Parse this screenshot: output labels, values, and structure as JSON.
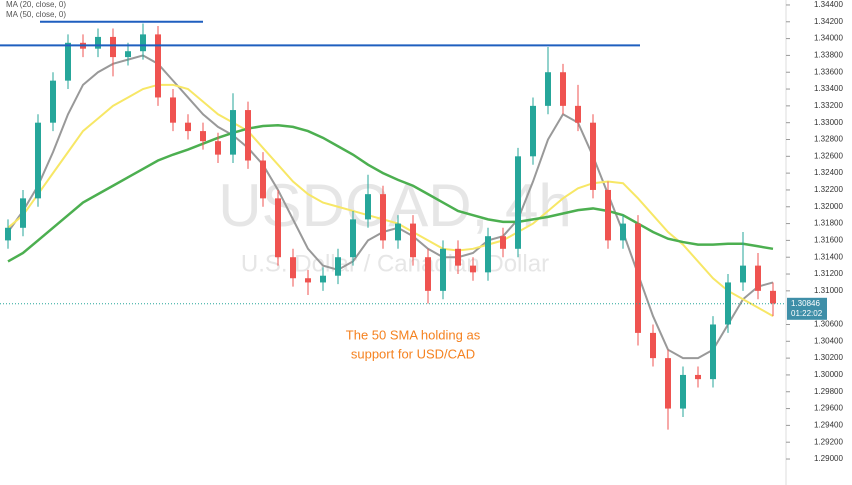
{
  "chart_data": {
    "type": "candlestick",
    "legend": [
      "MA (20, close, 0)",
      "MA (50, close, 0)"
    ],
    "watermark": "USDCAD, 4h",
    "watermark_subtitle": "U.S. Dollar / Canadian Dollar",
    "annotation": [
      "The 50 SMA holding as",
      "support for USD/CAD"
    ],
    "annotation_color": "#f58220",
    "last_price": 1.30846,
    "countdown": "01:22:02",
    "hlines": [
      {
        "value": 1.342,
        "color": "#1f5fbf"
      },
      {
        "value": 1.3392,
        "color": "#1f5fbf"
      }
    ],
    "up_color": "#26a69a",
    "down_color": "#ef5350",
    "ylim": [
      1.28691,
      1.34459
    ],
    "yticks": [
      {
        "value": 1.344,
        "label": "1.34400"
      },
      {
        "value": 1.342,
        "label": "1.34200"
      },
      {
        "value": 1.34,
        "label": "1.34000"
      },
      {
        "value": 1.338,
        "label": "1.33800"
      },
      {
        "value": 1.336,
        "label": "1.33600"
      },
      {
        "value": 1.334,
        "label": "1.33400"
      },
      {
        "value": 1.332,
        "label": "1.33200"
      },
      {
        "value": 1.33,
        "label": "1.33000"
      },
      {
        "value": 1.328,
        "label": "1.32800"
      },
      {
        "value": 1.326,
        "label": "1.32600"
      },
      {
        "value": 1.324,
        "label": "1.32400"
      },
      {
        "value": 1.322,
        "label": "1.32200"
      },
      {
        "value": 1.32,
        "label": "1.32000"
      },
      {
        "value": 1.318,
        "label": "1.31800"
      },
      {
        "value": 1.316,
        "label": "1.31600"
      },
      {
        "value": 1.314,
        "label": "1.31400"
      },
      {
        "value": 1.312,
        "label": "1.31200"
      },
      {
        "value": 1.31,
        "label": "1.31000"
      },
      {
        "value": 1.306,
        "label": "1.30600"
      },
      {
        "value": 1.304,
        "label": "1.30400"
      },
      {
        "value": 1.302,
        "label": "1.30200"
      },
      {
        "value": 1.3,
        "label": "1.30000"
      },
      {
        "value": 1.298,
        "label": "1.29800"
      },
      {
        "value": 1.296,
        "label": "1.29600"
      },
      {
        "value": 1.294,
        "label": "1.29400"
      },
      {
        "value": 1.292,
        "label": "1.29200"
      },
      {
        "value": 1.29,
        "label": "1.29000"
      }
    ],
    "open": [
      1.316,
      1.3175,
      1.321,
      1.33,
      1.335,
      1.3395,
      1.3388,
      1.3402,
      1.3378,
      1.3385,
      1.3405,
      1.333,
      1.33,
      1.329,
      1.3278,
      1.3262,
      1.3315,
      1.3255,
      1.321,
      1.314,
      1.3115,
      1.311,
      1.3118,
      1.314,
      1.3185,
      1.3215,
      1.316,
      1.318,
      1.314,
      1.31,
      1.315,
      1.313,
      1.3122,
      1.3165,
      1.315,
      1.326,
      1.332,
      1.336,
      1.332,
      1.33,
      1.322,
      1.316,
      1.318,
      1.305,
      1.302,
      1.296,
      1.3,
      1.2995,
      1.306,
      1.311,
      1.313,
      1.31
    ],
    "high": [
      1.3185,
      1.322,
      1.331,
      1.336,
      1.3405,
      1.3405,
      1.3412,
      1.3412,
      1.3395,
      1.3418,
      1.3415,
      1.334,
      1.331,
      1.33,
      1.3288,
      1.3335,
      1.3325,
      1.3265,
      1.322,
      1.315,
      1.3125,
      1.3128,
      1.315,
      1.3195,
      1.3238,
      1.3225,
      1.319,
      1.319,
      1.315,
      1.316,
      1.316,
      1.314,
      1.3175,
      1.3175,
      1.327,
      1.333,
      1.339,
      1.337,
      1.3345,
      1.331,
      1.323,
      1.319,
      1.319,
      1.306,
      1.303,
      1.301,
      1.301,
      1.307,
      1.312,
      1.317,
      1.3145,
      1.311
    ],
    "low": [
      1.315,
      1.3165,
      1.32,
      1.329,
      1.334,
      1.3378,
      1.3378,
      1.3355,
      1.3368,
      1.3375,
      1.332,
      1.329,
      1.328,
      1.3268,
      1.3252,
      1.3252,
      1.3245,
      1.32,
      1.313,
      1.3105,
      1.3095,
      1.31,
      1.3108,
      1.313,
      1.3175,
      1.315,
      1.315,
      1.313,
      1.3085,
      1.309,
      1.312,
      1.3112,
      1.3112,
      1.314,
      1.314,
      1.325,
      1.331,
      1.331,
      1.329,
      1.321,
      1.315,
      1.315,
      1.3035,
      1.301,
      1.2935,
      1.295,
      1.2985,
      1.2985,
      1.305,
      1.31,
      1.309,
      1.307
    ],
    "close": [
      1.3175,
      1.321,
      1.33,
      1.335,
      1.3395,
      1.3388,
      1.3402,
      1.3378,
      1.3385,
      1.3405,
      1.333,
      1.33,
      1.329,
      1.3278,
      1.3262,
      1.3315,
      1.3255,
      1.321,
      1.314,
      1.3115,
      1.311,
      1.3118,
      1.314,
      1.3185,
      1.3215,
      1.316,
      1.318,
      1.314,
      1.31,
      1.315,
      1.313,
      1.3122,
      1.3165,
      1.315,
      1.326,
      1.332,
      1.336,
      1.332,
      1.33,
      1.322,
      1.316,
      1.318,
      1.305,
      1.302,
      1.296,
      1.3,
      1.2995,
      1.306,
      1.311,
      1.313,
      1.31,
      1.3085
    ],
    "series": [
      {
        "name": "MA (20, close, 0)",
        "color": "#999999",
        "values": [
          1.317,
          1.3195,
          1.3225,
          1.3265,
          1.331,
          1.3345,
          1.336,
          1.337,
          1.3375,
          1.338,
          1.337,
          1.335,
          1.333,
          1.331,
          1.3295,
          1.3285,
          1.327,
          1.325,
          1.322,
          1.3185,
          1.315,
          1.313,
          1.3125,
          1.3135,
          1.316,
          1.317,
          1.3175,
          1.3165,
          1.315,
          1.314,
          1.314,
          1.3145,
          1.316,
          1.3165,
          1.3185,
          1.323,
          1.328,
          1.331,
          1.33,
          1.326,
          1.3215,
          1.317,
          1.312,
          1.307,
          1.303,
          1.302,
          1.302,
          1.303,
          1.306,
          1.309,
          1.3105,
          1.311
        ]
      },
      {
        "name": "MA (50, close, 0)",
        "color": "#f7e766",
        "values": [
          1.3175,
          1.319,
          1.3215,
          1.324,
          1.3265,
          1.329,
          1.3305,
          1.332,
          1.333,
          1.334,
          1.3345,
          1.3345,
          1.334,
          1.3325,
          1.331,
          1.33,
          1.329,
          1.327,
          1.325,
          1.323,
          1.3215,
          1.3205,
          1.32,
          1.3195,
          1.319,
          1.3185,
          1.318,
          1.317,
          1.316,
          1.315,
          1.3148,
          1.315,
          1.3155,
          1.316,
          1.317,
          1.318,
          1.3195,
          1.321,
          1.3222,
          1.3228,
          1.323,
          1.3228,
          1.321,
          1.319,
          1.317,
          1.3155,
          1.3135,
          1.3115,
          1.31,
          1.309,
          1.308,
          1.307
        ]
      },
      {
        "color": "#4caf50",
        "values": [
          1.3135,
          1.3145,
          1.316,
          1.3175,
          1.319,
          1.3205,
          1.3215,
          1.3225,
          1.3235,
          1.3245,
          1.3255,
          1.3262,
          1.3268,
          1.3275,
          1.3282,
          1.3288,
          1.3293,
          1.3296,
          1.3297,
          1.3295,
          1.329,
          1.3282,
          1.3272,
          1.3262,
          1.325,
          1.324,
          1.3232,
          1.3225,
          1.3215,
          1.3205,
          1.3195,
          1.319,
          1.3185,
          1.3182,
          1.3182,
          1.3185,
          1.3188,
          1.3192,
          1.3196,
          1.3198,
          1.3195,
          1.319,
          1.318,
          1.317,
          1.3162,
          1.3158,
          1.3155,
          1.3155,
          1.3156,
          1.3156,
          1.3153,
          1.315
        ]
      }
    ]
  }
}
